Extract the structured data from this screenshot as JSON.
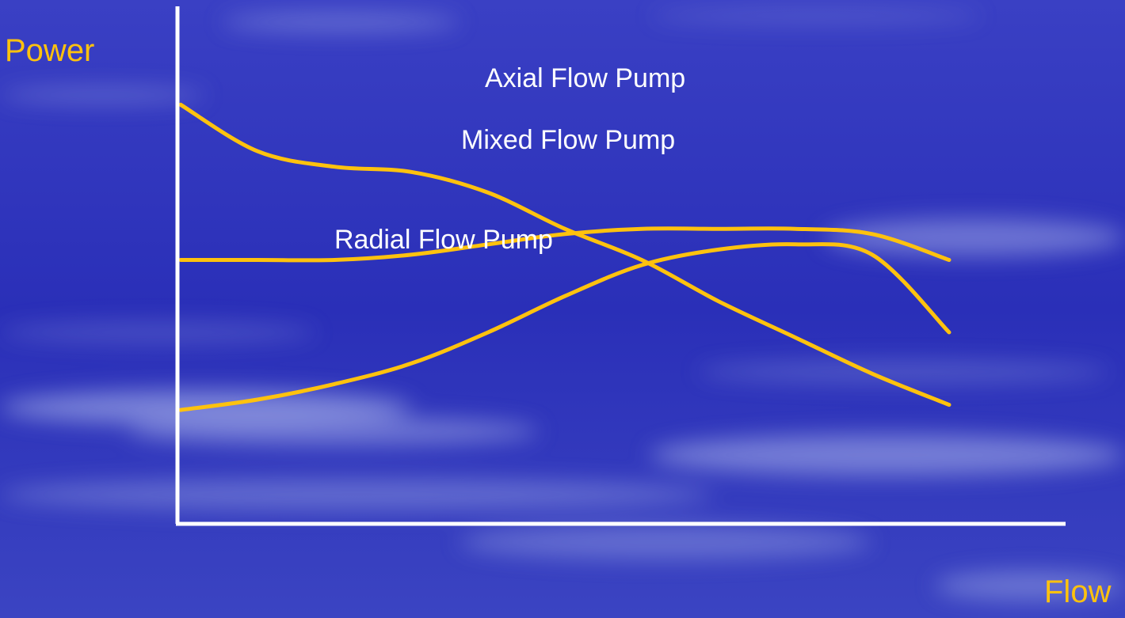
{
  "colors": {
    "background": "#2a2fb8",
    "cloud": "#b8c2f0",
    "axis": "#ffffff",
    "curve": "#ffc20e",
    "axis_title": "#ffc20e",
    "series_label": "#ffffff"
  },
  "chart_data": {
    "type": "line",
    "title": "",
    "xlabel": "Flow",
    "ylabel": "Power",
    "xlim": [
      0,
      100
    ],
    "ylim": [
      0,
      100
    ],
    "grid": false,
    "legend": "none",
    "ticks": false,
    "annotations": [
      {
        "text": "Axial Flow Pump"
      },
      {
        "text": "Mixed Flow Pump"
      },
      {
        "text": "Radial Flow Pump"
      }
    ],
    "curves": [
      {
        "x": [
          0,
          10,
          20,
          30,
          40,
          50,
          60,
          70,
          80,
          90,
          100
        ],
        "y": [
          81,
          72,
          69,
          68,
          64,
          57,
          51,
          43,
          36,
          29,
          23
        ]
      },
      {
        "x": [
          0,
          10,
          20,
          30,
          40,
          50,
          60,
          70,
          80,
          90,
          100
        ],
        "y": [
          51,
          51,
          51,
          52,
          54,
          56,
          57,
          57,
          57,
          56,
          51
        ]
      },
      {
        "x": [
          0,
          10,
          20,
          30,
          40,
          50,
          60,
          70,
          80,
          90,
          100
        ],
        "y": [
          22,
          24,
          27,
          31,
          37,
          44,
          50,
          53,
          54,
          52,
          37
        ]
      }
    ]
  }
}
